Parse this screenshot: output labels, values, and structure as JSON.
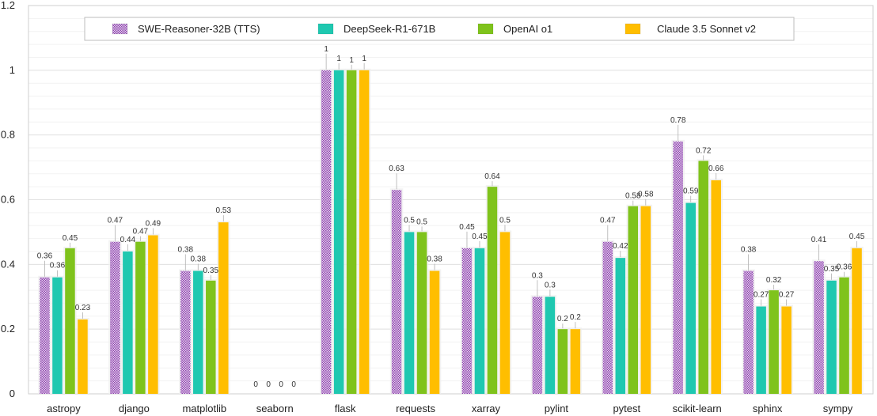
{
  "chart_data": {
    "type": "bar",
    "title": "",
    "xlabel": "",
    "ylabel": "",
    "ylim": [
      0,
      1.2
    ],
    "yticks": [
      "0",
      "0.2",
      "0.4",
      "0.6",
      "0.8",
      "1",
      "1.2"
    ],
    "legend_position": "top",
    "grid": true,
    "categories": [
      "astropy",
      "django",
      "matplotlib",
      "seaborn",
      "flask",
      "requests",
      "xarray",
      "pylint",
      "pytest",
      "scikit-learn",
      "sphinx",
      "sympy"
    ],
    "series": [
      {
        "name": "SWE-Reasoner-32B (TTS)",
        "color": "#9b59b6",
        "pattern": "checker",
        "values": [
          0.36,
          0.47,
          0.38,
          0,
          1,
          0.63,
          0.45,
          0.3,
          0.47,
          0.78,
          0.38,
          0.41
        ],
        "labels": [
          "0.36",
          "0.47",
          "0.38",
          "0",
          "1",
          "0.63",
          "0.45",
          "0.3",
          "0.47",
          "0.78",
          "0.38",
          "0.41"
        ]
      },
      {
        "name": "DeepSeek-R1-671B",
        "color": "#1fc8b0",
        "pattern": "solid",
        "values": [
          0.36,
          0.44,
          0.38,
          0,
          1,
          0.5,
          0.45,
          0.3,
          0.42,
          0.59,
          0.27,
          0.35
        ],
        "labels": [
          "0.36",
          "0.44",
          "0.38",
          "0",
          "1",
          "0.5",
          "0.45",
          "0.3",
          "0.42",
          "0.59",
          "0.27",
          "0.35"
        ]
      },
      {
        "name": "OpenAI o1",
        "color": "#7fc31c",
        "pattern": "solid",
        "values": [
          0.45,
          0.47,
          0.35,
          0,
          1,
          0.5,
          0.64,
          0.2,
          0.58,
          0.72,
          0.32,
          0.36
        ],
        "labels": [
          "0.45",
          "0.47",
          "0.35",
          "0",
          "1",
          "0.5",
          "0.64",
          "0.2",
          "0.58",
          "0.72",
          "0.32",
          "0.36"
        ]
      },
      {
        "name": "Claude 3.5 Sonnet v2",
        "color": "#ffbe00",
        "pattern": "solid",
        "values": [
          0.23,
          0.49,
          0.53,
          0,
          1,
          0.38,
          0.5,
          0.2,
          0.58,
          0.66,
          0.27,
          0.45
        ],
        "labels": [
          "0.23",
          "0.49",
          "0.53",
          "0",
          "1",
          "0.38",
          "0.5",
          "0.2",
          "0.58",
          "0.66",
          "0.27",
          "0.45"
        ]
      }
    ]
  }
}
